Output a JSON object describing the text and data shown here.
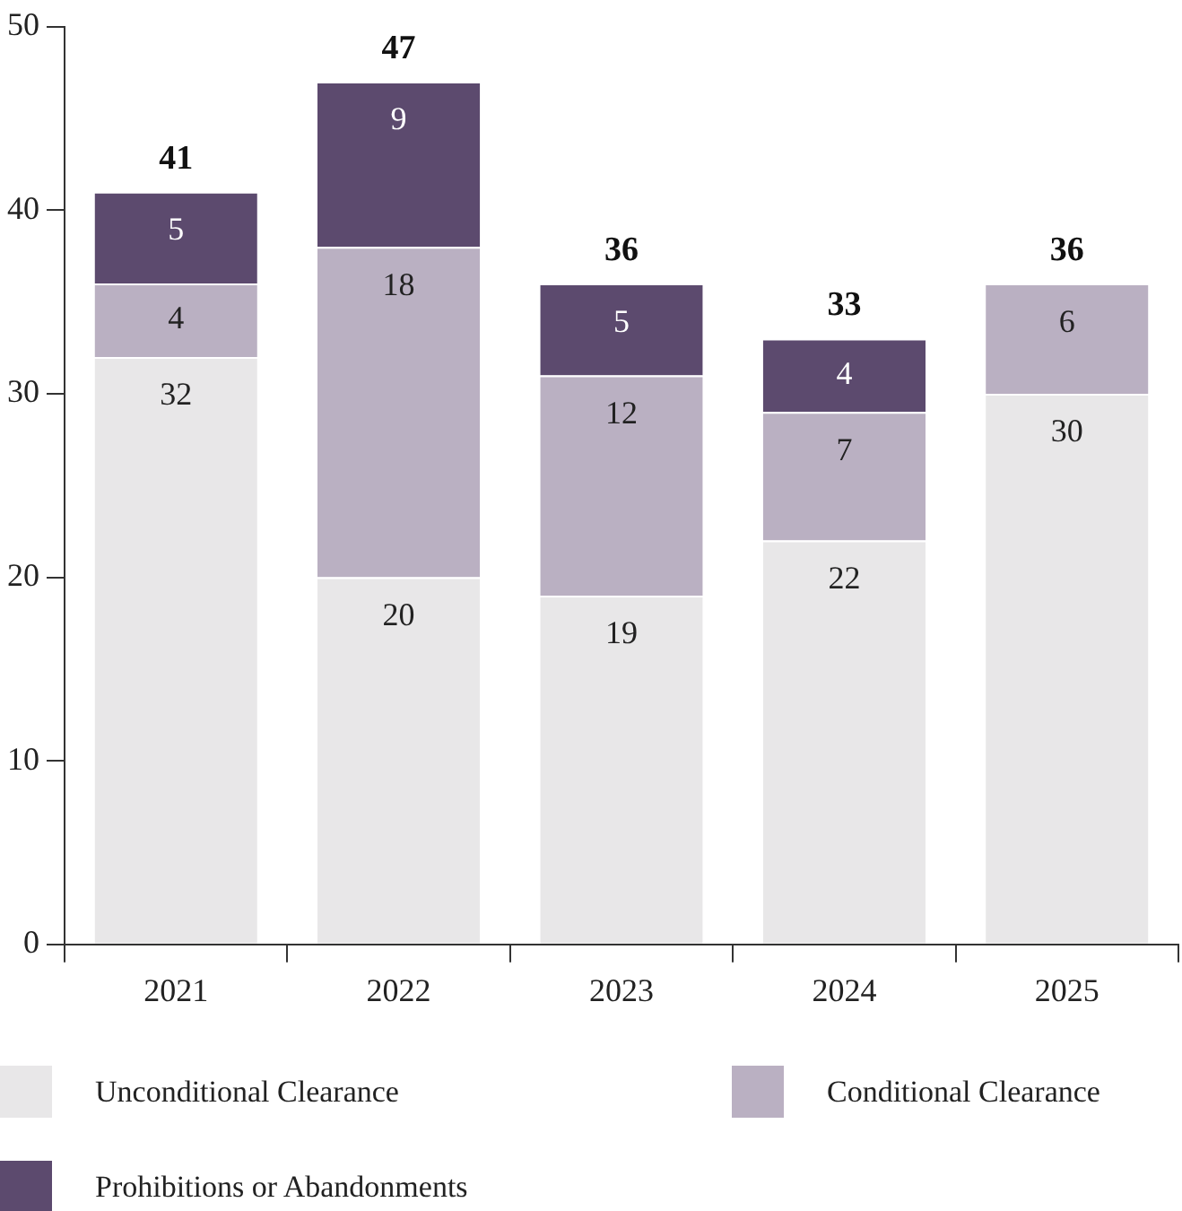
{
  "chart_data": {
    "type": "bar",
    "stacked": true,
    "categories": [
      "2021",
      "2022",
      "2023",
      "2024",
      "2025"
    ],
    "series": [
      {
        "name": "Unconditional Clearance",
        "color": "#e8e7e8",
        "values": [
          32,
          20,
          19,
          22,
          30
        ]
      },
      {
        "name": "Conditional Clearance",
        "color": "#bab0c2",
        "values": [
          4,
          18,
          12,
          7,
          6
        ]
      },
      {
        "name": "Prohibitions or Abandonments",
        "color": "#5c4a6e",
        "values": [
          5,
          9,
          5,
          4,
          null
        ]
      }
    ],
    "ylim": [
      0,
      50
    ],
    "yticks": [
      0,
      10,
      20,
      30,
      40,
      50
    ],
    "grid": false,
    "legend": "bottom",
    "data_labels": true,
    "totals": [
      "41",
      "47",
      "36",
      "33",
      "36"
    ]
  }
}
